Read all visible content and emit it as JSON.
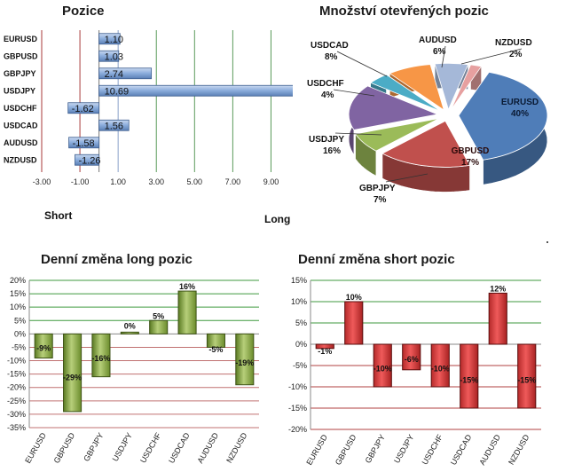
{
  "chart_data": [
    {
      "type": "bar",
      "orientation": "horizontal",
      "title": "Pozice",
      "categories": [
        "EURUSD",
        "GBPUSD",
        "GBPJPY",
        "USDJPY",
        "USDCHF",
        "USDCAD",
        "AUDUSD",
        "NZDUSD"
      ],
      "values": [
        1.1,
        1.03,
        2.74,
        10.69,
        -1.62,
        1.56,
        -1.58,
        -1.26
      ],
      "value_labels": [
        "1.10",
        "1.03",
        "2.74",
        "10.69",
        "-1.62",
        "1.56",
        "-1.58",
        "-1.26"
      ],
      "xlim": [
        -3,
        10
      ],
      "xticks": [
        "-3.00",
        "-1.00",
        "1.00",
        "3.00",
        "5.00",
        "7.00",
        "9.00"
      ],
      "short_label": "Short",
      "long_label": "Long",
      "bar_color": "#5a7fb5"
    },
    {
      "type": "pie",
      "title": "Množství otevřených pozic",
      "slices": [
        {
          "label": "EURUSD",
          "percent": "40%",
          "value": 40,
          "color": "#4f7db8"
        },
        {
          "label": "GBPUSD",
          "percent": "17%",
          "value": 17,
          "color": "#c0504d"
        },
        {
          "label": "GBPJPY",
          "percent": "7%",
          "value": 7,
          "color": "#9bbb59"
        },
        {
          "label": "USDJPY",
          "percent": "16%",
          "value": 16,
          "color": "#8064a2"
        },
        {
          "label": "USDCHF",
          "percent": "4%",
          "value": 4,
          "color": "#4bacc6"
        },
        {
          "label": "USDCAD",
          "percent": "8%",
          "value": 8,
          "color": "#f79646"
        },
        {
          "label": "AUDUSD",
          "percent": "6%",
          "value": 6,
          "color": "#a5b8d8"
        },
        {
          "label": "NZDUSD",
          "percent": "2%",
          "value": 2,
          "color": "#e6a0a0"
        }
      ]
    },
    {
      "type": "bar",
      "title": "Denní změna long pozic",
      "categories": [
        "EURUSD",
        "GBPUSD",
        "GBPJPY",
        "USDJPY",
        "USDCHF",
        "USDCAD",
        "AUDUSD",
        "NZDUSD"
      ],
      "values": [
        -9,
        -29,
        -16,
        0,
        5,
        16,
        -5,
        -19
      ],
      "value_labels": [
        "-9%",
        "-29%",
        "-16%",
        "0%",
        "5%",
        "16%",
        "-5%",
        "-19%"
      ],
      "ylim": [
        -35,
        20
      ],
      "yticks": [
        "20%",
        "15%",
        "10%",
        "5%",
        "0%",
        "-5%",
        "-10%",
        "-15%",
        "-20%",
        "-25%",
        "-30%",
        "-35%"
      ],
      "bar_color": "#7a9a3a"
    },
    {
      "type": "bar",
      "title": "Denní změna short pozic",
      "categories": [
        "EURUSD",
        "GBPUSD",
        "GBPJPY",
        "USDJPY",
        "USDCHF",
        "USDCAD",
        "AUDUSD",
        "NZDUSD"
      ],
      "values": [
        -1,
        10,
        -10,
        -6,
        -10,
        -15,
        12,
        -15
      ],
      "value_labels": [
        "-1%",
        "10%",
        "-10%",
        "-6%",
        "-10%",
        "-15%",
        "12%",
        "-15%"
      ],
      "ylim": [
        -20,
        15
      ],
      "yticks": [
        "15%",
        "10%",
        "5%",
        "0%",
        "-5%",
        "-10%",
        "-15%",
        "-20%"
      ],
      "bar_color": "#cc3333"
    }
  ]
}
